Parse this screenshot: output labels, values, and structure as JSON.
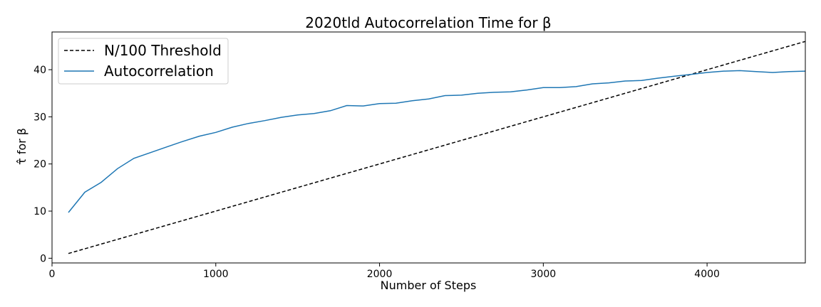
{
  "chart_data": {
    "type": "line",
    "title": "2020tld Autocorrelation Time for β",
    "xlabel": "Number of Steps",
    "ylabel": "τ̂ for β",
    "xlim": [
      0,
      4600
    ],
    "ylim": [
      -1,
      48
    ],
    "xticks": [
      0,
      1000,
      2000,
      3000,
      4000
    ],
    "yticks": [
      0,
      10,
      20,
      30,
      40
    ],
    "legend": "top-left",
    "grid": false,
    "series": [
      {
        "name": "N/100 Threshold",
        "color": "#000000",
        "style": "dashed",
        "x": [
          100,
          4600
        ],
        "y": [
          1,
          46
        ]
      },
      {
        "name": "Autocorrelation",
        "color": "#1f77b4",
        "style": "solid",
        "x": [
          100,
          200,
          300,
          400,
          500,
          600,
          700,
          800,
          900,
          1000,
          1100,
          1200,
          1300,
          1400,
          1500,
          1600,
          1700,
          1800,
          1900,
          2000,
          2100,
          2200,
          2300,
          2400,
          2500,
          2600,
          2700,
          2800,
          2900,
          3000,
          3100,
          3200,
          3300,
          3400,
          3500,
          3600,
          3700,
          3800,
          3900,
          4000,
          4100,
          4200,
          4300,
          4400,
          4500,
          4600
        ],
        "y": [
          9.7,
          14.0,
          16.1,
          19.0,
          21.2,
          22.4,
          23.6,
          24.8,
          25.9,
          26.7,
          27.8,
          28.6,
          29.2,
          29.9,
          30.4,
          30.7,
          31.3,
          32.4,
          32.3,
          32.8,
          32.9,
          33.4,
          33.8,
          34.5,
          34.6,
          35.0,
          35.2,
          35.3,
          35.7,
          36.2,
          36.2,
          36.4,
          37.0,
          37.2,
          37.6,
          37.7,
          38.2,
          38.6,
          39.0,
          39.4,
          39.7,
          39.8,
          39.6,
          39.4,
          39.6,
          39.7
        ]
      }
    ]
  }
}
